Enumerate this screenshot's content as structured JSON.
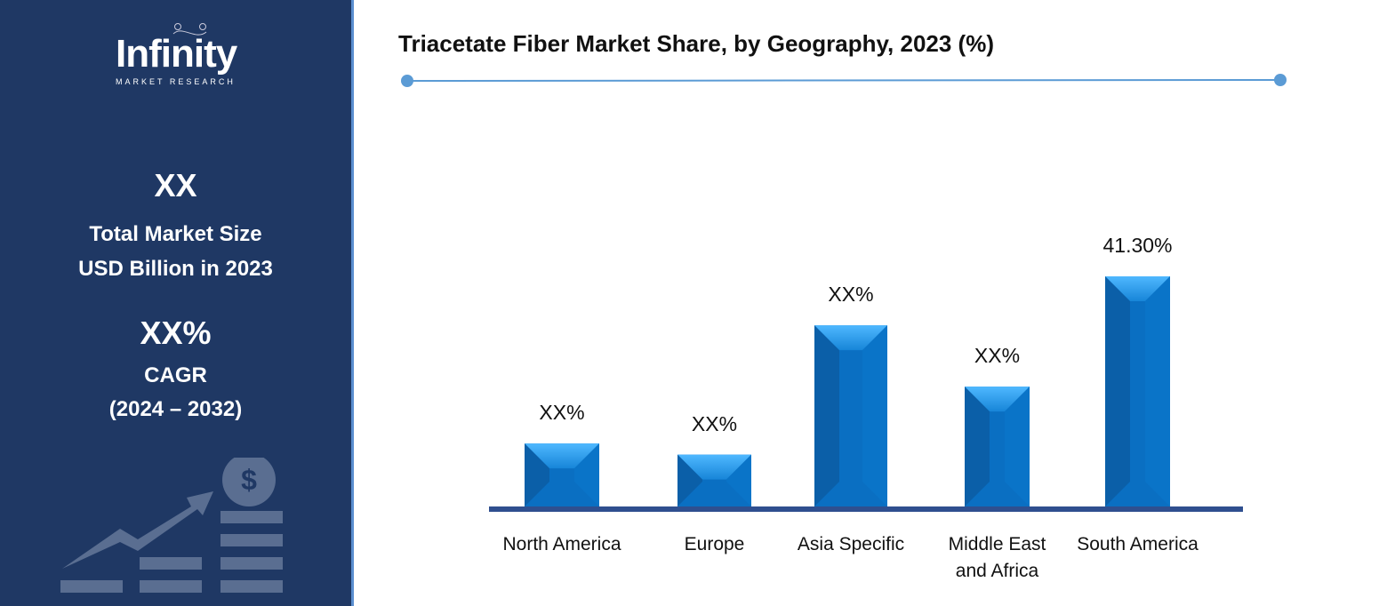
{
  "sidebar": {
    "logo_main": "Infinity",
    "logo_sub": "MARKET RESEARCH",
    "market_size": "XX",
    "market_size_label_1": "Total Market Size",
    "market_size_label_2": "USD Billion in 2023",
    "cagr": "XX%",
    "cagr_label": "CAGR",
    "cagr_period": "(2024 – 2032)"
  },
  "chart_data": {
    "type": "bar",
    "title": "Triacetate Fiber Market Share, by Geography, 2023 (%)",
    "categories": [
      "North America",
      "Europe",
      "Asia Specific",
      "Middle East and Africa",
      "South America"
    ],
    "category_lines": [
      [
        "North America"
      ],
      [
        "Europe"
      ],
      [
        "Asia Specific"
      ],
      [
        "Middle East",
        "and Africa"
      ],
      [
        "South America"
      ]
    ],
    "values": [
      11.3,
      9.3,
      32.5,
      21.5,
      41.3
    ],
    "data_labels": [
      "XX%",
      "XX%",
      "XX%",
      "XX%",
      "41.30%"
    ],
    "ylim": [
      0,
      45
    ],
    "grid": false,
    "bar_color": "#0a6fc2",
    "axis_color": "#2f4f8f"
  }
}
